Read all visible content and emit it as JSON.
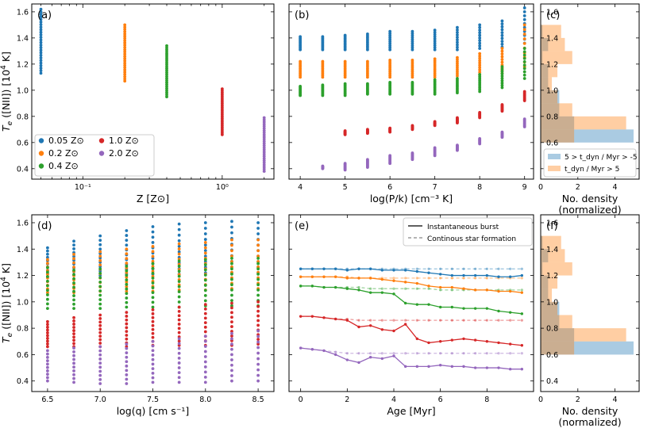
{
  "colors": {
    "z005": "#1f77b4",
    "z02": "#ff7f0e",
    "z04": "#2ca02c",
    "z10": "#d62728",
    "z20": "#9467bd"
  },
  "chart_data": [
    {
      "panel": "a",
      "label": "(a)",
      "type": "scatter",
      "xscale": "log",
      "xlabel": "Z [Z⊙]",
      "ylabel": "T_e ([NII]) [10^4 K]",
      "ylim": [
        0.32,
        1.66
      ],
      "xlim": [
        0.043,
        2.35
      ],
      "xticks": [
        0.1,
        1
      ],
      "xticklabels": [
        "10⁻¹",
        "10⁰"
      ],
      "yticks": [
        0.4,
        0.6,
        0.8,
        1.0,
        1.2,
        1.4,
        1.6
      ],
      "yticklabels": [
        "0.4",
        "0.6",
        "0.8",
        "1.0",
        "1.2",
        "1.4",
        "1.6"
      ],
      "legend_title": "",
      "legend_position": "lower-left",
      "series": [
        {
          "name": "0.05 Z⊙",
          "color_key": "z005",
          "x": 0.05,
          "ymin": 1.13,
          "ymax": 1.62
        },
        {
          "name": "0.2 Z⊙",
          "color_key": "z02",
          "x": 0.2,
          "ymin": 1.07,
          "ymax": 1.5
        },
        {
          "name": "0.4 Z⊙",
          "color_key": "z04",
          "x": 0.4,
          "ymin": 0.95,
          "ymax": 1.34
        },
        {
          "name": "1.0 Z⊙",
          "color_key": "z10",
          "x": 1.0,
          "ymin": 0.66,
          "ymax": 1.01
        },
        {
          "name": "2.0 Z⊙",
          "color_key": "z20",
          "x": 2.0,
          "ymin": 0.38,
          "ymax": 0.79
        }
      ]
    },
    {
      "panel": "b",
      "label": "(b)",
      "type": "scatter",
      "xlabel": "log(P/k) [cm⁻³ K]",
      "xlim": [
        3.75,
        9.2
      ],
      "xticks": [
        4,
        5,
        6,
        7,
        8,
        9
      ],
      "xticklabels": [
        "4",
        "5",
        "6",
        "7",
        "8",
        "9"
      ],
      "ylim": [
        0.32,
        1.66
      ],
      "x": [
        4.0,
        4.5,
        5.0,
        5.5,
        6.0,
        6.5,
        7.0,
        7.5,
        8.0,
        8.5,
        9.0
      ],
      "series": [
        {
          "color_key": "z005",
          "lo": [
            1.31,
            1.31,
            1.31,
            1.31,
            1.31,
            1.31,
            1.31,
            1.31,
            1.32,
            1.33,
            1.36
          ],
          "hi": [
            1.41,
            1.41,
            1.42,
            1.43,
            1.45,
            1.45,
            1.46,
            1.48,
            1.5,
            1.53,
            1.63
          ]
        },
        {
          "color_key": "z02",
          "lo": [
            1.1,
            1.1,
            1.1,
            1.1,
            1.1,
            1.1,
            1.1,
            1.11,
            1.12,
            1.13,
            1.18
          ],
          "hi": [
            1.22,
            1.22,
            1.22,
            1.22,
            1.23,
            1.23,
            1.24,
            1.25,
            1.28,
            1.32,
            1.5
          ]
        },
        {
          "color_key": "z04",
          "lo": [
            0.96,
            0.96,
            0.96,
            0.97,
            0.97,
            0.97,
            0.97,
            0.98,
            0.99,
            1.02,
            1.09
          ],
          "hi": [
            1.03,
            1.04,
            1.05,
            1.05,
            1.06,
            1.06,
            1.08,
            1.09,
            1.12,
            1.18,
            1.32
          ]
        },
        {
          "color_key": "z10",
          "lo": [
            null,
            null,
            0.66,
            0.67,
            0.68,
            0.7,
            0.73,
            0.75,
            0.79,
            0.84,
            0.92
          ],
          "hi": [
            null,
            null,
            0.69,
            0.7,
            0.71,
            0.73,
            0.76,
            0.79,
            0.83,
            0.89,
            0.99
          ]
        },
        {
          "color_key": "z20",
          "lo": [
            null,
            0.4,
            0.39,
            0.41,
            0.44,
            0.47,
            0.5,
            0.54,
            0.59,
            0.64,
            0.72
          ],
          "hi": [
            null,
            0.42,
            0.44,
            0.47,
            0.5,
            0.52,
            0.56,
            0.58,
            0.63,
            0.68,
            0.78
          ]
        }
      ]
    },
    {
      "panel": "c",
      "label": "(c)",
      "type": "histogram",
      "orientation": "horizontal",
      "xlabel": "No. density\n(normalized)",
      "xlim": [
        0,
        5.3
      ],
      "xticks": [
        0,
        2,
        4
      ],
      "xticklabels": [
        "0",
        "2",
        "4"
      ],
      "ylim": [
        0.32,
        1.66
      ],
      "bin_edges": [
        0.6,
        0.7,
        0.8,
        0.9,
        1.0,
        1.1,
        1.2,
        1.3,
        1.4,
        1.5
      ],
      "legend_position": "bottom",
      "series": [
        {
          "name": "5 > t_dyn / Myr > -5",
          "color": "#1f77b4",
          "alpha": 0.38,
          "counts": [
            5.0,
            1.8,
            1.0,
            1.0,
            0.4,
            0.4,
            0.1,
            0.4,
            0.1
          ]
        },
        {
          "name": "t_dyn / Myr > 5",
          "color": "#ff7f0e",
          "alpha": 0.38,
          "counts": [
            1.8,
            4.6,
            1.7,
            0.9,
            0.6,
            0.9,
            1.7,
            1.3,
            1.1
          ]
        }
      ]
    },
    {
      "panel": "d",
      "label": "(d)",
      "type": "scatter",
      "xlabel": "log(q) [cm s⁻¹]",
      "ylabel": "T_e ([NII]) [10^4 K]",
      "xlim": [
        6.35,
        8.65
      ],
      "xticks": [
        6.5,
        7.0,
        7.5,
        8.0,
        8.5
      ],
      "xticklabels": [
        "6.5",
        "7.0",
        "7.5",
        "8.0",
        "8.5"
      ],
      "ylim": [
        0.32,
        1.66
      ],
      "x": [
        6.5,
        6.75,
        7.0,
        7.25,
        7.5,
        7.75,
        8.0,
        8.25,
        8.5
      ],
      "series": [
        {
          "color_key": "z005",
          "lo": [
            1.19,
            1.2,
            1.2,
            1.21,
            1.21,
            1.21,
            1.22,
            1.22,
            1.22
          ],
          "hi": [
            1.41,
            1.46,
            1.5,
            1.54,
            1.57,
            1.59,
            1.6,
            1.61,
            1.6
          ]
        },
        {
          "color_key": "z02",
          "lo": [
            1.07,
            1.07,
            1.08,
            1.08,
            1.08,
            1.09,
            1.09,
            1.1,
            1.1
          ],
          "hi": [
            1.32,
            1.36,
            1.38,
            1.4,
            1.42,
            1.44,
            1.45,
            1.47,
            1.47
          ]
        },
        {
          "color_key": "z04",
          "lo": [
            0.95,
            0.95,
            0.95,
            0.96,
            0.96,
            0.96,
            0.97,
            0.97,
            0.97
          ],
          "hi": [
            1.26,
            1.24,
            1.25,
            1.27,
            1.29,
            1.31,
            1.32,
            1.33,
            1.33
          ]
        },
        {
          "color_key": "z10",
          "lo": [
            0.66,
            0.66,
            0.66,
            0.66,
            0.67,
            0.67,
            0.67,
            0.67,
            0.68
          ],
          "hi": [
            0.85,
            0.88,
            0.9,
            0.92,
            0.94,
            0.96,
            0.98,
            0.99,
            1.0
          ]
        },
        {
          "color_key": "z20",
          "lo": [
            0.4,
            0.39,
            0.38,
            0.38,
            0.39,
            0.39,
            0.39,
            0.4,
            0.4
          ],
          "hi": [
            0.63,
            0.65,
            0.66,
            0.68,
            0.7,
            0.72,
            0.74,
            0.76,
            0.78
          ]
        }
      ]
    },
    {
      "panel": "e",
      "label": "(e)",
      "type": "line",
      "xlabel": "Age [Myr]",
      "xlim": [
        -0.5,
        10.0
      ],
      "xticks": [
        0,
        2,
        4,
        6,
        8
      ],
      "xticklabels": [
        "0",
        "2",
        "4",
        "6",
        "8"
      ],
      "ylim": [
        0.32,
        1.66
      ],
      "legend_position": "top-right",
      "legend": [
        "Instantaneous burst",
        "Continous star formation"
      ],
      "x": [
        0,
        0.5,
        1.0,
        1.5,
        2.0,
        2.5,
        3.0,
        3.5,
        4.0,
        4.5,
        5.0,
        5.5,
        6.0,
        6.5,
        7.0,
        7.5,
        8.0,
        8.5,
        9.0,
        9.5
      ],
      "burst": [
        {
          "color_key": "z005",
          "values": [
            1.25,
            1.25,
            1.25,
            1.25,
            1.24,
            1.25,
            1.25,
            1.24,
            1.24,
            1.24,
            1.23,
            1.22,
            1.21,
            1.2,
            1.2,
            1.2,
            1.2,
            1.19,
            1.19,
            1.2
          ]
        },
        {
          "color_key": "z02",
          "values": [
            1.19,
            1.19,
            1.19,
            1.19,
            1.18,
            1.18,
            1.18,
            1.17,
            1.16,
            1.15,
            1.14,
            1.12,
            1.11,
            1.11,
            1.1,
            1.09,
            1.09,
            1.08,
            1.08,
            1.07
          ]
        },
        {
          "color_key": "z04",
          "values": [
            1.12,
            1.12,
            1.11,
            1.11,
            1.1,
            1.09,
            1.07,
            1.07,
            1.06,
            0.99,
            0.98,
            0.98,
            0.96,
            0.96,
            0.95,
            0.95,
            0.95,
            0.93,
            0.92,
            0.91
          ]
        },
        {
          "color_key": "z10",
          "values": [
            0.89,
            0.89,
            0.88,
            0.87,
            0.86,
            0.81,
            0.82,
            0.79,
            0.78,
            0.83,
            0.72,
            0.69,
            0.7,
            0.71,
            0.72,
            0.71,
            0.7,
            0.69,
            0.68,
            0.67
          ]
        },
        {
          "color_key": "z20",
          "values": [
            0.65,
            0.64,
            0.63,
            0.6,
            0.56,
            0.54,
            0.58,
            0.57,
            0.59,
            0.51,
            0.51,
            0.51,
            0.52,
            0.51,
            0.51,
            0.5,
            0.5,
            0.5,
            0.49,
            0.49
          ]
        }
      ],
      "continuous": [
        {
          "color_key": "z005",
          "values": [
            1.25,
            1.25,
            1.25,
            1.25,
            1.25,
            1.25,
            1.25,
            1.25,
            1.25,
            1.25,
            1.25,
            1.25,
            1.25,
            1.25,
            1.25,
            1.25,
            1.25,
            1.25,
            1.25,
            1.25
          ]
        },
        {
          "color_key": "z02",
          "values": [
            1.19,
            1.19,
            1.19,
            1.19,
            1.19,
            1.18,
            1.18,
            1.18,
            1.18,
            1.18,
            1.18,
            1.18,
            1.18,
            1.18,
            1.18,
            1.18,
            1.18,
            1.18,
            1.18,
            1.18
          ]
        },
        {
          "color_key": "z04",
          "values": [
            1.12,
            1.12,
            1.11,
            1.11,
            1.11,
            1.11,
            1.1,
            1.1,
            1.1,
            1.1,
            1.1,
            1.1,
            1.09,
            1.09,
            1.09,
            1.09,
            1.09,
            1.09,
            1.09,
            1.09
          ]
        },
        {
          "color_key": "z10",
          "values": [
            0.89,
            0.89,
            0.88,
            0.87,
            0.87,
            0.86,
            0.86,
            0.86,
            0.86,
            0.86,
            0.86,
            0.86,
            0.86,
            0.86,
            0.86,
            0.86,
            0.86,
            0.86,
            0.86,
            0.86
          ]
        },
        {
          "color_key": "z20",
          "values": [
            0.65,
            0.64,
            0.63,
            0.62,
            0.61,
            0.61,
            0.61,
            0.61,
            0.61,
            0.61,
            0.61,
            0.61,
            0.61,
            0.61,
            0.61,
            0.61,
            0.61,
            0.61,
            0.61,
            0.61
          ]
        }
      ]
    },
    {
      "panel": "f",
      "label": "(f)",
      "type": "histogram",
      "orientation": "horizontal",
      "xlabel": "No. density\n(normalized)",
      "xlim": [
        0,
        5.3
      ],
      "xticks": [
        0,
        2,
        4
      ],
      "xticklabels": [
        "0",
        "2",
        "4"
      ],
      "ylim": [
        0.32,
        1.66
      ],
      "bin_edges": [
        0.6,
        0.7,
        0.8,
        0.9,
        1.0,
        1.1,
        1.2,
        1.3,
        1.4,
        1.5
      ],
      "series": [
        {
          "name": "5 > t_dyn / Myr > -5",
          "color": "#1f77b4",
          "alpha": 0.38,
          "counts": [
            5.0,
            1.8,
            1.0,
            1.0,
            0.4,
            0.4,
            0.1,
            0.4,
            0.1
          ]
        },
        {
          "name": "t_dyn / Myr > 5",
          "color": "#ff7f0e",
          "alpha": 0.38,
          "counts": [
            1.8,
            4.6,
            1.7,
            0.9,
            0.6,
            0.9,
            1.7,
            1.3,
            1.1
          ]
        }
      ]
    }
  ]
}
